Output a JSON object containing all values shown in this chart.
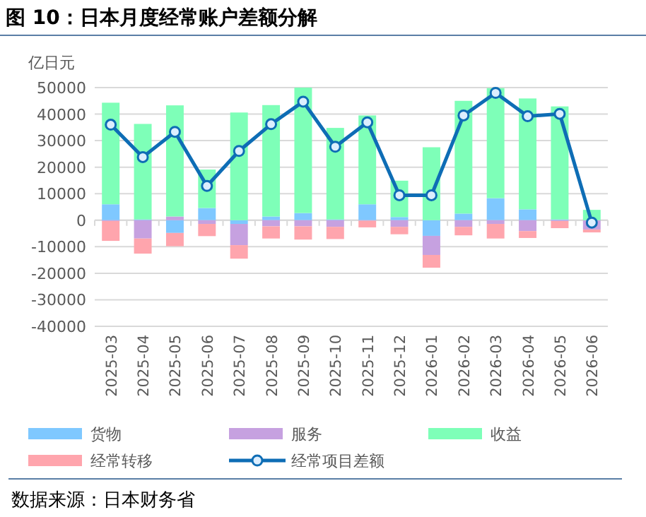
{
  "chart_data": {
    "type": "bar",
    "stacked": true,
    "title": "图 10：日本月度经常账户差额分解",
    "ylabel": "亿日元",
    "categories": [
      "2025-03",
      "2025-04",
      "2025-05",
      "2025-06",
      "2025-07",
      "2025-08",
      "2025-09",
      "2025-10",
      "2025-11",
      "2025-12",
      "2026-01",
      "2026-02",
      "2026-03",
      "2026-04",
      "2026-05",
      "2026-06"
    ],
    "series": [
      {
        "name": "货物",
        "color": "#7fc8ff",
        "values": [
          6000,
          300,
          -4800,
          4600,
          -1400,
          1400,
          2700,
          300,
          6000,
          1200,
          -5900,
          2500,
          8300,
          4100,
          300,
          null
        ]
      },
      {
        "name": "服务",
        "color": "#c6a1e0",
        "values": [
          -300,
          -6900,
          1400,
          -1400,
          -8000,
          -2300,
          -2300,
          -2500,
          -200,
          -2500,
          -7200,
          -2500,
          -1400,
          -4100,
          -300,
          -3500
        ]
      },
      {
        "name": "收益",
        "color": "#7effb8",
        "values": [
          38300,
          36000,
          41900,
          14500,
          40600,
          42000,
          47300,
          34500,
          33500,
          13700,
          27500,
          42500,
          41500,
          41800,
          42600,
          3900
        ]
      },
      {
        "name": "经常转移",
        "color": "#ffa5ad",
        "values": [
          -7500,
          -5700,
          -5000,
          -4600,
          -5100,
          -4600,
          -5000,
          -4600,
          -2500,
          -2800,
          -4800,
          -3200,
          -5500,
          -2600,
          -2700,
          -1100
        ]
      },
      {
        "name": "经常项目差额",
        "type": "line",
        "color": "#0e6db5",
        "marker": "circle",
        "line_style": "solid",
        "values": [
          36000,
          23800,
          33300,
          12900,
          26100,
          36200,
          44700,
          27700,
          36900,
          9400,
          9400,
          39500,
          48000,
          39200,
          40100,
          -900
        ]
      }
    ],
    "ylim": [
      -40000,
      50000
    ],
    "yticks": [
      -40000,
      -30000,
      -20000,
      -10000,
      0,
      10000,
      20000,
      30000,
      40000,
      50000
    ],
    "grid": "y",
    "legend": "bottom",
    "annotations": [
      "数据来源：日本财务省"
    ]
  }
}
